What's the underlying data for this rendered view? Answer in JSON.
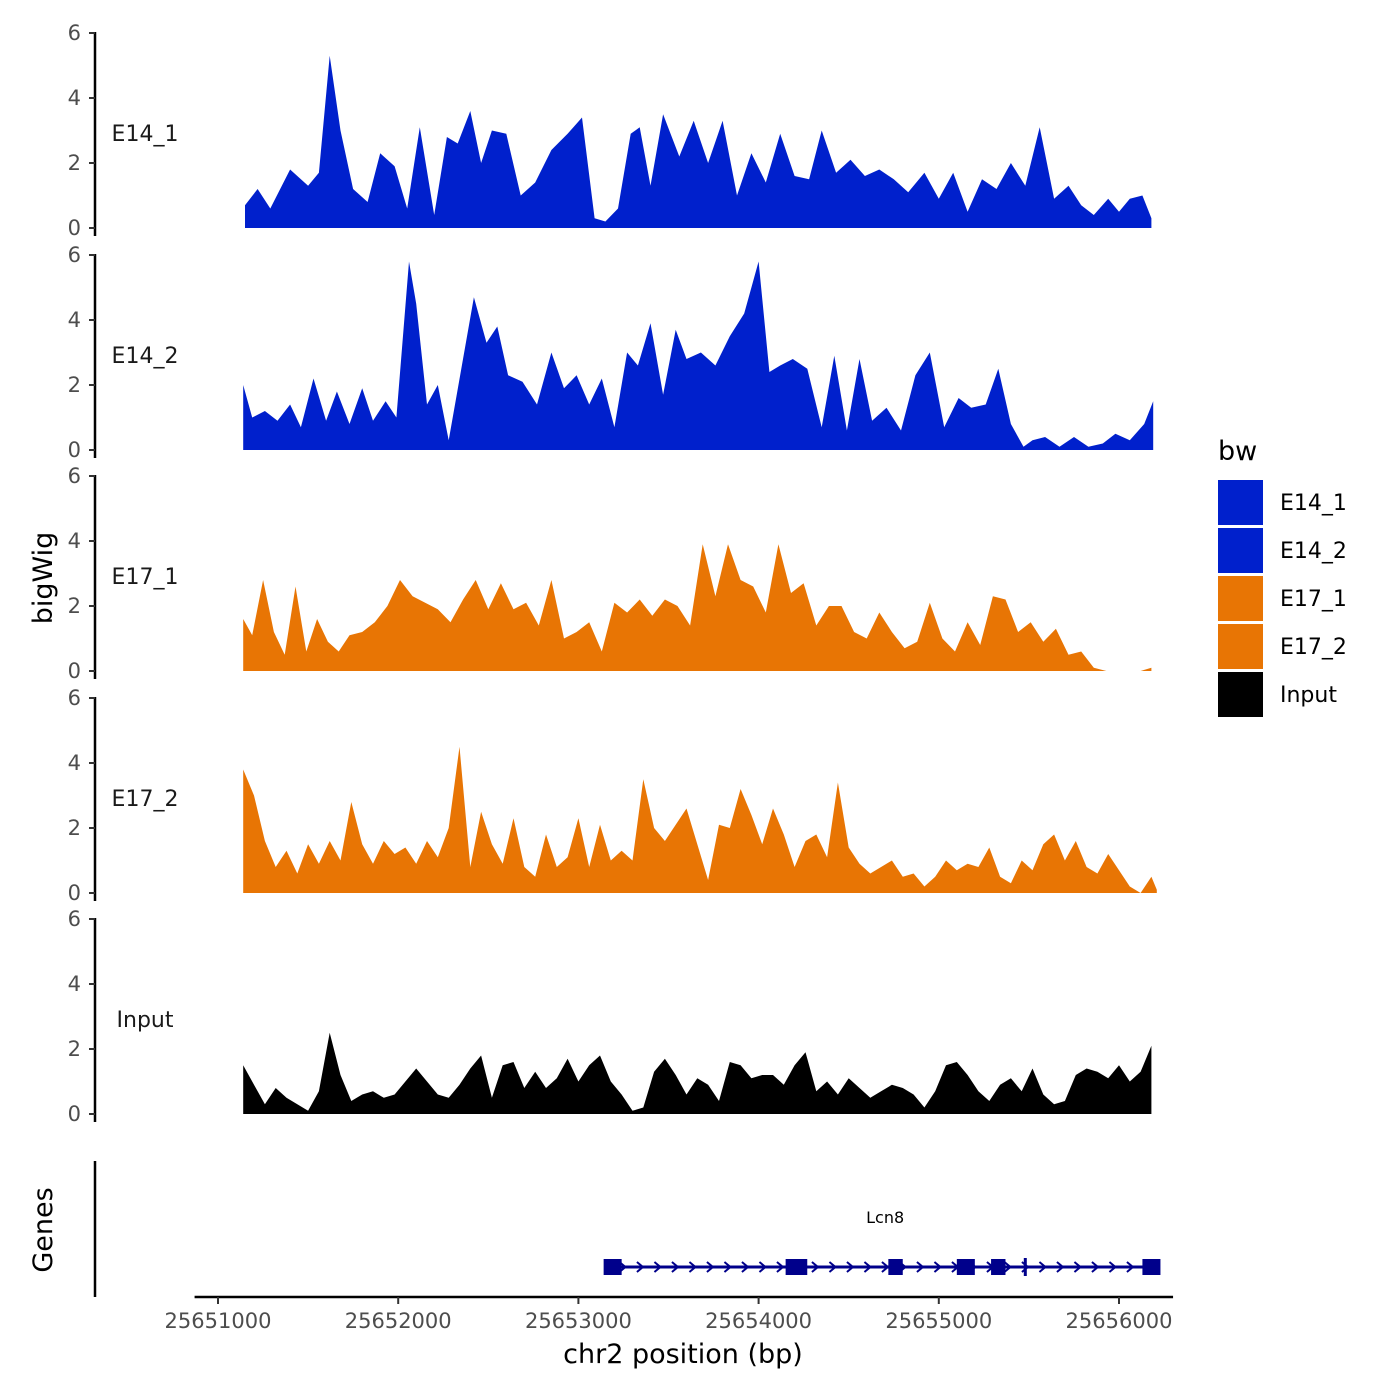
{
  "chart_data": {
    "type": "area",
    "ylabel": "bigWig",
    "xlabel": "chr2 position (bp)",
    "genes_label": "Genes",
    "ylim": [
      0,
      6
    ],
    "y_ticks": [
      0,
      2,
      4,
      6
    ],
    "y_tick_labels": [
      "0",
      "2",
      "4",
      "6"
    ],
    "xlim": [
      25650870,
      25656300
    ],
    "x_ticks": [
      25651000,
      25652000,
      25653000,
      25654000,
      25655000,
      25656000
    ],
    "x_tick_labels": [
      "25651000",
      "25652000",
      "25653000",
      "25654000",
      "25655000",
      "25656000"
    ],
    "legend": {
      "title": "bw",
      "position": "right",
      "entries": [
        {
          "label": "E14_1",
          "color": "#0020CC"
        },
        {
          "label": "E14_2",
          "color": "#0020CC"
        },
        {
          "label": "E17_1",
          "color": "#E87504"
        },
        {
          "label": "E17_2",
          "color": "#E87504"
        },
        {
          "label": "Input",
          "color": "#000000"
        }
      ]
    },
    "series": [
      {
        "name": "E14_1",
        "color": "#0020CC",
        "x": [
          25651150,
          25651220,
          25651290,
          25651400,
          25651500,
          25651560,
          25651620,
          25651680,
          25651750,
          25651830,
          25651900,
          25651980,
          25652050,
          25652120,
          25652200,
          25652270,
          25652330,
          25652400,
          25652460,
          25652520,
          25652600,
          25652680,
          25652760,
          25652850,
          25652940,
          25653020,
          25653090,
          25653150,
          25653220,
          25653290,
          25653340,
          25653400,
          25653470,
          25653560,
          25653640,
          25653720,
          25653800,
          25653880,
          25653960,
          25654040,
          25654120,
          25654200,
          25654280,
          25654350,
          25654430,
          25654510,
          25654590,
          25654670,
          25654750,
          25654830,
          25654920,
          25655000,
          25655080,
          25655160,
          25655240,
          25655320,
          25655400,
          25655480,
          25655560,
          25655640,
          25655720,
          25655790,
          25655860,
          25655940,
          25656000,
          25656060,
          25656130,
          25656180
        ],
        "values": [
          0.7,
          1.2,
          0.6,
          1.8,
          1.3,
          1.7,
          5.3,
          3.0,
          1.2,
          0.8,
          2.3,
          1.9,
          0.6,
          3.1,
          0.4,
          2.8,
          2.6,
          3.6,
          2.0,
          3.0,
          2.9,
          1.0,
          1.4,
          2.4,
          2.9,
          3.4,
          0.3,
          0.2,
          0.6,
          2.9,
          3.1,
          1.3,
          3.5,
          2.2,
          3.3,
          2.0,
          3.3,
          1.0,
          2.3,
          1.4,
          2.9,
          1.6,
          1.5,
          3.0,
          1.7,
          2.1,
          1.6,
          1.8,
          1.5,
          1.1,
          1.7,
          0.9,
          1.7,
          0.5,
          1.5,
          1.2,
          2.0,
          1.3,
          3.1,
          0.9,
          1.3,
          0.7,
          0.4,
          0.9,
          0.5,
          0.9,
          1.0,
          0.3
        ]
      },
      {
        "name": "E14_2",
        "color": "#0020CC",
        "x": [
          25651140,
          25651190,
          25651260,
          25651330,
          25651400,
          25651460,
          25651530,
          25651600,
          25651660,
          25651730,
          25651800,
          25651860,
          25651930,
          25651990,
          25652060,
          25652100,
          25652160,
          25652220,
          25652280,
          25652350,
          25652420,
          25652490,
          25652550,
          25652610,
          25652690,
          25652770,
          25652850,
          25652920,
          25652990,
          25653060,
          25653130,
          25653200,
          25653270,
          25653330,
          25653400,
          25653470,
          25653540,
          25653600,
          25653680,
          25653760,
          25653840,
          25653920,
          25654000,
          25654060,
          25654120,
          25654190,
          25654270,
          25654350,
          25654420,
          25654490,
          25654560,
          25654630,
          25654710,
          25654790,
          25654870,
          25654950,
          25655030,
          25655110,
          25655180,
          25655260,
          25655330,
          25655400,
          25655470,
          25655520,
          25655590,
          25655670,
          25655750,
          25655830,
          25655910,
          25655980,
          25656060,
          25656140,
          25656190
        ],
        "values": [
          2.0,
          1.0,
          1.2,
          0.9,
          1.4,
          0.7,
          2.2,
          0.9,
          1.8,
          0.8,
          1.9,
          0.9,
          1.5,
          1.0,
          5.8,
          4.5,
          1.4,
          2.0,
          0.3,
          2.5,
          4.7,
          3.3,
          3.8,
          2.3,
          2.1,
          1.4,
          3.0,
          1.9,
          2.3,
          1.4,
          2.2,
          0.7,
          3.0,
          2.6,
          3.9,
          1.7,
          3.7,
          2.8,
          3.0,
          2.6,
          3.5,
          4.2,
          5.8,
          2.4,
          2.6,
          2.8,
          2.5,
          0.7,
          2.9,
          0.6,
          2.8,
          0.9,
          1.3,
          0.6,
          2.3,
          3.0,
          0.7,
          1.6,
          1.3,
          1.4,
          2.5,
          0.8,
          0.1,
          0.3,
          0.4,
          0.1,
          0.4,
          0.1,
          0.2,
          0.5,
          0.3,
          0.8,
          1.5
        ]
      },
      {
        "name": "E17_1",
        "color": "#E87504",
        "x": [
          25651140,
          25651190,
          25651250,
          25651310,
          25651370,
          25651430,
          25651490,
          25651550,
          25651610,
          25651670,
          25651730,
          25651800,
          25651870,
          25651940,
          25652010,
          25652080,
          25652150,
          25652220,
          25652290,
          25652360,
          25652430,
          25652500,
          25652570,
          25652640,
          25652710,
          25652780,
          25652850,
          25652920,
          25652990,
          25653060,
          25653130,
          25653200,
          25653270,
          25653340,
          25653410,
          25653480,
          25653550,
          25653620,
          25653690,
          25653760,
          25653830,
          25653900,
          25653970,
          25654040,
          25654110,
          25654180,
          25654250,
          25654320,
          25654390,
          25654460,
          25654530,
          25654600,
          25654670,
          25654740,
          25654810,
          25654880,
          25654950,
          25655020,
          25655090,
          25655160,
          25655230,
          25655300,
          25655370,
          25655440,
          25655510,
          25655580,
          25655650,
          25655720,
          25655790,
          25655860,
          25655930,
          25656000,
          25656070,
          25656120,
          25656180
        ],
        "values": [
          1.6,
          1.1,
          2.8,
          1.2,
          0.5,
          2.6,
          0.6,
          1.6,
          0.9,
          0.6,
          1.1,
          1.2,
          1.5,
          2.0,
          2.8,
          2.3,
          2.1,
          1.9,
          1.5,
          2.2,
          2.8,
          1.9,
          2.7,
          1.9,
          2.1,
          1.4,
          2.8,
          1.0,
          1.2,
          1.5,
          0.6,
          2.1,
          1.8,
          2.2,
          1.7,
          2.2,
          2.0,
          1.4,
          3.9,
          2.3,
          3.9,
          2.8,
          2.6,
          1.8,
          3.9,
          2.4,
          2.7,
          1.4,
          2.0,
          2.0,
          1.2,
          1.0,
          1.8,
          1.2,
          0.7,
          0.9,
          2.1,
          1.0,
          0.6,
          1.5,
          0.8,
          2.3,
          2.2,
          1.2,
          1.5,
          0.9,
          1.3,
          0.5,
          0.6,
          0.1,
          0.0,
          0.0,
          0.0,
          0.0,
          0.1
        ]
      },
      {
        "name": "E17_2",
        "color": "#E87504",
        "x": [
          25651140,
          25651200,
          25651260,
          25651320,
          25651380,
          25651440,
          25651500,
          25651560,
          25651620,
          25651680,
          25651740,
          25651800,
          25651860,
          25651920,
          25651980,
          25652040,
          25652100,
          25652160,
          25652220,
          25652280,
          25652340,
          25652400,
          25652460,
          25652520,
          25652580,
          25652640,
          25652700,
          25652760,
          25652820,
          25652880,
          25652940,
          25653000,
          25653060,
          25653120,
          25653180,
          25653240,
          25653300,
          25653360,
          25653420,
          25653480,
          25653540,
          25653600,
          25653660,
          25653720,
          25653780,
          25653840,
          25653900,
          25653960,
          25654020,
          25654080,
          25654140,
          25654200,
          25654260,
          25654320,
          25654380,
          25654440,
          25654500,
          25654560,
          25654620,
          25654680,
          25654740,
          25654800,
          25654860,
          25654920,
          25654980,
          25655040,
          25655100,
          25655160,
          25655220,
          25655280,
          25655340,
          25655400,
          25655460,
          25655520,
          25655580,
          25655640,
          25655700,
          25655760,
          25655820,
          25655880,
          25655940,
          25656000,
          25656060,
          25656120,
          25656180,
          25656210
        ],
        "values": [
          3.8,
          3.0,
          1.6,
          0.8,
          1.3,
          0.6,
          1.5,
          0.9,
          1.6,
          1.0,
          2.8,
          1.5,
          0.9,
          1.6,
          1.2,
          1.4,
          0.9,
          1.6,
          1.1,
          2.0,
          4.5,
          0.8,
          2.5,
          1.5,
          0.9,
          2.3,
          0.8,
          0.5,
          1.8,
          0.8,
          1.1,
          2.3,
          0.8,
          2.1,
          1.0,
          1.3,
          1.0,
          3.5,
          2.0,
          1.6,
          2.1,
          2.6,
          1.5,
          0.4,
          2.1,
          2.0,
          3.2,
          2.4,
          1.5,
          2.6,
          1.8,
          0.8,
          1.6,
          1.8,
          1.1,
          3.4,
          1.4,
          0.9,
          0.6,
          0.8,
          1.0,
          0.5,
          0.6,
          0.2,
          0.5,
          1.0,
          0.7,
          0.9,
          0.8,
          1.4,
          0.5,
          0.3,
          1.0,
          0.7,
          1.5,
          1.8,
          1.0,
          1.6,
          0.8,
          0.6,
          1.2,
          0.7,
          0.2,
          0.0,
          0.5,
          0.1
        ]
      },
      {
        "name": "Input",
        "color": "#000000",
        "x": [
          25651140,
          25651200,
          25651260,
          25651320,
          25651380,
          25651440,
          25651500,
          25651560,
          25651620,
          25651680,
          25651740,
          25651800,
          25651860,
          25651920,
          25651980,
          25652040,
          25652100,
          25652160,
          25652220,
          25652280,
          25652340,
          25652400,
          25652460,
          25652520,
          25652580,
          25652640,
          25652700,
          25652760,
          25652820,
          25652880,
          25652940,
          25653000,
          25653060,
          25653120,
          25653180,
          25653240,
          25653300,
          25653360,
          25653420,
          25653480,
          25653540,
          25653600,
          25653660,
          25653720,
          25653780,
          25653840,
          25653900,
          25653960,
          25654020,
          25654080,
          25654140,
          25654200,
          25654260,
          25654320,
          25654380,
          25654440,
          25654500,
          25654560,
          25654620,
          25654680,
          25654740,
          25654800,
          25654860,
          25654920,
          25654980,
          25655040,
          25655100,
          25655160,
          25655220,
          25655280,
          25655340,
          25655400,
          25655460,
          25655520,
          25655580,
          25655640,
          25655700,
          25655760,
          25655820,
          25655880,
          25655940,
          25656000,
          25656060,
          25656120,
          25656180
        ],
        "values": [
          1.5,
          0.9,
          0.3,
          0.8,
          0.5,
          0.3,
          0.1,
          0.7,
          2.5,
          1.2,
          0.4,
          0.6,
          0.7,
          0.5,
          0.6,
          1.0,
          1.4,
          1.0,
          0.6,
          0.5,
          0.9,
          1.4,
          1.8,
          0.5,
          1.5,
          1.6,
          0.8,
          1.3,
          0.8,
          1.1,
          1.7,
          1.0,
          1.5,
          1.8,
          1.0,
          0.6,
          0.1,
          0.2,
          1.3,
          1.7,
          1.2,
          0.6,
          1.1,
          0.9,
          0.4,
          1.6,
          1.5,
          1.1,
          1.2,
          1.2,
          0.9,
          1.5,
          1.9,
          0.7,
          1.0,
          0.6,
          1.1,
          0.8,
          0.5,
          0.7,
          0.9,
          0.8,
          0.6,
          0.2,
          0.7,
          1.5,
          1.6,
          1.2,
          0.7,
          0.4,
          0.9,
          1.1,
          0.7,
          1.4,
          0.6,
          0.3,
          0.4,
          1.2,
          1.4,
          1.3,
          1.1,
          1.5,
          1.0,
          1.3,
          2.1
        ]
      }
    ],
    "gene": {
      "name": "Lcn8",
      "strand": "+",
      "color": "#00008B",
      "start": 25653150,
      "end": 25656210,
      "exons": [
        {
          "start": 25653140,
          "end": 25653240
        },
        {
          "start": 25654150,
          "end": 25654270
        },
        {
          "start": 25654720,
          "end": 25654800
        },
        {
          "start": 25655100,
          "end": 25655200
        },
        {
          "start": 25655290,
          "end": 25655370
        },
        {
          "start": 25656130,
          "end": 25656230
        }
      ],
      "ticks": [
        25655480
      ]
    }
  }
}
